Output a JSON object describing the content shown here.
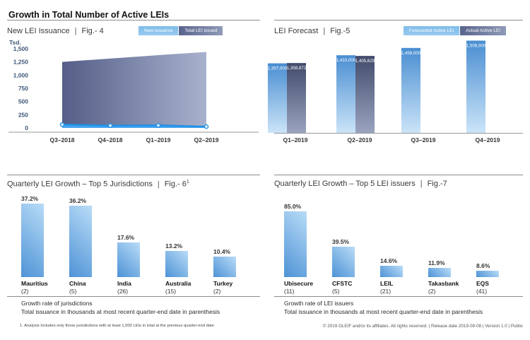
{
  "page": {
    "title": "Growth in Total Number of Active LEIs",
    "footnote": "1. Analysis includes only those jurisdictions with at least 1,000 LEIs in total at the previous quarter-end date",
    "footer": "© 2019 GLEIF and/or its affiliates. All rights reserved.  |  Release date 2019-08-08  |  Version 1.0  |  Public"
  },
  "ui": {
    "separator": "|"
  },
  "colors": {
    "new_issuance_fill": "#47A5EF",
    "new_issuance_line": "#1E90E4",
    "area_dark_start": "#545E87",
    "area_dark_end": "#A8B2CE",
    "forecast_bar_top": "#4A8ED2",
    "forecast_bar_bottom": "#CBE4F8",
    "actual_bar_top": "#424B6B",
    "actual_bar_bottom": "#9AA4C0",
    "growth_bar_dark": "#4E93D6",
    "growth_bar_light": "#B9DCF7",
    "axis_text": "#3F5878",
    "axis_line": "#999999"
  },
  "chart_data": [
    {
      "id": "fig4",
      "type": "area",
      "title": "New LEI Issuance",
      "fig_label": "Fig.- 4",
      "y_axis_label": "Tsd.",
      "x": [
        "Q3–2018",
        "Q4–2018",
        "Q1–2019",
        "Q2–2019"
      ],
      "ylim": [
        0,
        1500
      ],
      "yticks": [
        "1,500",
        "1,250",
        "1,000",
        "750",
        "500",
        "250",
        "0"
      ],
      "legend_position": "top-right",
      "series": [
        {
          "name": "New issuance",
          "values": [
            65,
            45,
            50,
            25
          ]
        },
        {
          "name": "Total LEI issued",
          "values": [
            1250,
            1315,
            1380,
            1440
          ]
        }
      ]
    },
    {
      "id": "fig5",
      "type": "bar",
      "title": "LEI Forecast",
      "fig_label": "Fig.-5",
      "x": [
        "Q1–2019",
        "Q2–2019",
        "Q3–2019",
        "Q4–2019"
      ],
      "ylim": [
        900000,
        1550000
      ],
      "legend_position": "top-right",
      "series": [
        {
          "name": "Forecasted Active LEI",
          "values": [
            1357000,
            1410000,
            1458000,
            1506000
          ],
          "labels": [
            "1,357,000",
            "1,410,000",
            "1,458,000",
            "1,506,000"
          ]
        },
        {
          "name": "Actual Active LEI",
          "values": [
            1358872,
            1405629,
            null,
            null
          ],
          "labels": [
            "1,358,872",
            "1,405,629",
            null,
            null
          ]
        }
      ]
    },
    {
      "id": "fig6",
      "type": "bar",
      "title": "Quarterly LEI Growth – Top 5 Jurisdictions",
      "fig_label": "Fig.- 6",
      "fig_superscript": "1",
      "categories": [
        "Mauritius",
        "China",
        "India",
        "Australia",
        "Turkey"
      ],
      "category_totals": [
        "(2)",
        "(5)",
        "(26)",
        "(15)",
        "(2)"
      ],
      "values": [
        37.2,
        36.2,
        17.6,
        13.2,
        10.4
      ],
      "value_labels": [
        "37.2%",
        "36.2%",
        "17.6%",
        "13.2%",
        "10.4%"
      ],
      "ylim": [
        0,
        40
      ],
      "notes": [
        "Growth rate of jurisdictions",
        "Total issuance in thousands at most recent quarter-end date in parenthesis"
      ]
    },
    {
      "id": "fig7",
      "type": "bar",
      "title": "Quarterly LEI Growth – Top 5 LEI issuers",
      "fig_label": "Fig.-7",
      "categories": [
        "Ubisecure",
        "CFSTC",
        "LEIL",
        "Takasbank",
        "EQS"
      ],
      "category_totals": [
        "(11)",
        "(5)",
        "(21)",
        "(2)",
        "(41)"
      ],
      "values": [
        85.0,
        39.5,
        14.6,
        11.9,
        8.6
      ],
      "value_labels": [
        "85.0%",
        "39.5%",
        "14.6%",
        "11.9%",
        "8.6%"
      ],
      "ylim": [
        0,
        100
      ],
      "notes": [
        "Growth rate of LEI issuers",
        "Total issuance in thousands at most recent quarter-end date in parenthesis"
      ]
    }
  ]
}
